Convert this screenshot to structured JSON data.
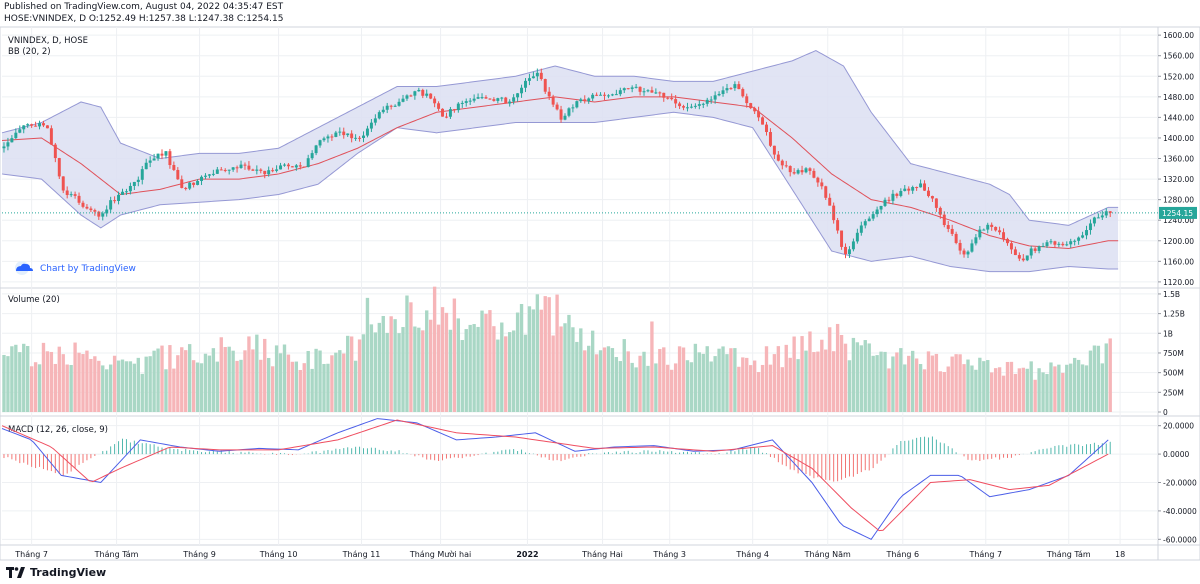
{
  "header": {
    "published_line": "Published on TradingView.com, August 04, 2022 04:35:47 EST",
    "ohlc_line": "HOSE:VNINDEX, D O:1252.49 H:1257.38 L:1247.38 C:1254.15"
  },
  "footer": {
    "brand": "TradingView"
  },
  "chart_data": {
    "type": "candlestick",
    "panes": [
      {
        "id": "price",
        "legend": [
          "VNINDEX, D, HOSE",
          "BB (20, 2)"
        ],
        "watermark": "Chart by TradingView",
        "y_ticks": [
          1600,
          1560,
          1520,
          1480,
          1440,
          1400,
          1360,
          1320,
          1280,
          1240,
          1200,
          1160,
          1120
        ],
        "y_tick_labels": [
          "1600.00",
          "1560.00",
          "1520.00",
          "1480.00",
          "1440.00",
          "1400.00",
          "1360.00",
          "1320.00",
          "1280.00",
          "1240.00",
          "1200.00",
          "1160.00",
          "1120.00"
        ],
        "ylim": [
          1112,
          1610
        ],
        "last_price": 1254.15,
        "last_price_label": "1254.15",
        "close_path": [
          [
            0,
            1380
          ],
          [
            12,
            1430
          ],
          [
            22,
            1420
          ],
          [
            30,
            1300
          ],
          [
            40,
            1270
          ],
          [
            48,
            1250
          ],
          [
            58,
            1290
          ],
          [
            66,
            1310
          ],
          [
            74,
            1360
          ],
          [
            82,
            1370
          ],
          [
            90,
            1300
          ],
          [
            100,
            1320
          ],
          [
            110,
            1340
          ],
          [
            120,
            1345
          ],
          [
            132,
            1330
          ],
          [
            142,
            1350
          ],
          [
            152,
            1345
          ],
          [
            160,
            1400
          ],
          [
            170,
            1410
          ],
          [
            180,
            1400
          ],
          [
            190,
            1450
          ],
          [
            200,
            1470
          ],
          [
            210,
            1490
          ],
          [
            216,
            1480
          ],
          [
            222,
            1440
          ],
          [
            232,
            1470
          ],
          [
            244,
            1480
          ],
          [
            256,
            1470
          ],
          [
            264,
            1510
          ],
          [
            270,
            1525
          ],
          [
            276,
            1480
          ],
          [
            282,
            1440
          ],
          [
            290,
            1470
          ],
          [
            298,
            1480
          ],
          [
            310,
            1490
          ],
          [
            322,
            1495
          ],
          [
            334,
            1480
          ],
          [
            346,
            1460
          ],
          [
            358,
            1475
          ],
          [
            370,
            1500
          ],
          [
            376,
            1470
          ],
          [
            384,
            1430
          ],
          [
            390,
            1370
          ],
          [
            398,
            1330
          ],
          [
            406,
            1340
          ],
          [
            414,
            1310
          ],
          [
            420,
            1240
          ],
          [
            426,
            1170
          ],
          [
            434,
            1230
          ],
          [
            442,
            1260
          ],
          [
            450,
            1290
          ],
          [
            458,
            1300
          ],
          [
            464,
            1310
          ],
          [
            470,
            1280
          ],
          [
            476,
            1230
          ],
          [
            482,
            1200
          ],
          [
            486,
            1170
          ],
          [
            494,
            1220
          ],
          [
            500,
            1230
          ],
          [
            508,
            1200
          ],
          [
            514,
            1160
          ],
          [
            520,
            1180
          ],
          [
            528,
            1195
          ],
          [
            538,
            1190
          ],
          [
            546,
            1210
          ],
          [
            554,
            1250
          ],
          [
            560,
            1254.15
          ]
        ],
        "bb_basis": [
          [
            0,
            1395
          ],
          [
            20,
            1400
          ],
          [
            40,
            1350
          ],
          [
            60,
            1290
          ],
          [
            80,
            1300
          ],
          [
            100,
            1320
          ],
          [
            120,
            1320
          ],
          [
            140,
            1330
          ],
          [
            160,
            1350
          ],
          [
            180,
            1380
          ],
          [
            200,
            1420
          ],
          [
            220,
            1450
          ],
          [
            240,
            1460
          ],
          [
            260,
            1470
          ],
          [
            280,
            1480
          ],
          [
            300,
            1470
          ],
          [
            320,
            1480
          ],
          [
            340,
            1480
          ],
          [
            360,
            1470
          ],
          [
            380,
            1460
          ],
          [
            400,
            1400
          ],
          [
            420,
            1330
          ],
          [
            440,
            1280
          ],
          [
            460,
            1265
          ],
          [
            480,
            1240
          ],
          [
            500,
            1210
          ],
          [
            520,
            1190
          ],
          [
            540,
            1185
          ],
          [
            560,
            1200
          ]
        ],
        "bb_upper": [
          [
            0,
            1410
          ],
          [
            20,
            1430
          ],
          [
            40,
            1470
          ],
          [
            50,
            1460
          ],
          [
            60,
            1390
          ],
          [
            80,
            1360
          ],
          [
            100,
            1370
          ],
          [
            120,
            1370
          ],
          [
            140,
            1380
          ],
          [
            160,
            1420
          ],
          [
            180,
            1460
          ],
          [
            200,
            1500
          ],
          [
            220,
            1500
          ],
          [
            240,
            1510
          ],
          [
            260,
            1520
          ],
          [
            280,
            1540
          ],
          [
            300,
            1520
          ],
          [
            320,
            1520
          ],
          [
            340,
            1510
          ],
          [
            360,
            1510
          ],
          [
            380,
            1530
          ],
          [
            400,
            1550
          ],
          [
            412,
            1570
          ],
          [
            426,
            1540
          ],
          [
            440,
            1450
          ],
          [
            460,
            1350
          ],
          [
            480,
            1330
          ],
          [
            500,
            1310
          ],
          [
            510,
            1290
          ],
          [
            520,
            1240
          ],
          [
            540,
            1230
          ],
          [
            560,
            1265
          ]
        ],
        "bb_lower": [
          [
            0,
            1330
          ],
          [
            20,
            1320
          ],
          [
            40,
            1250
          ],
          [
            50,
            1225
          ],
          [
            60,
            1250
          ],
          [
            80,
            1270
          ],
          [
            100,
            1275
          ],
          [
            120,
            1280
          ],
          [
            140,
            1290
          ],
          [
            160,
            1310
          ],
          [
            180,
            1370
          ],
          [
            200,
            1420
          ],
          [
            220,
            1410
          ],
          [
            240,
            1420
          ],
          [
            260,
            1430
          ],
          [
            280,
            1430
          ],
          [
            300,
            1430
          ],
          [
            320,
            1440
          ],
          [
            340,
            1450
          ],
          [
            360,
            1440
          ],
          [
            380,
            1420
          ],
          [
            400,
            1300
          ],
          [
            420,
            1180
          ],
          [
            440,
            1160
          ],
          [
            460,
            1170
          ],
          [
            480,
            1150
          ],
          [
            500,
            1140
          ],
          [
            520,
            1140
          ],
          [
            540,
            1150
          ],
          [
            560,
            1145
          ]
        ]
      },
      {
        "id": "volume",
        "legend": "Volume (20)",
        "y_ticks": [
          1500000000,
          1250000000,
          1000000000,
          750000000,
          500000000,
          250000000,
          0
        ],
        "y_tick_labels": [
          "1.5B",
          "1.25B",
          "1B",
          "750M",
          "500M",
          "250M",
          "0"
        ],
        "ylim": [
          0,
          1550000000
        ],
        "volume_profile": [
          [
            0,
            650
          ],
          [
            30,
            750
          ],
          [
            60,
            550
          ],
          [
            90,
            700
          ],
          [
            120,
            800
          ],
          [
            150,
            650
          ],
          [
            180,
            800
          ],
          [
            200,
            1100
          ],
          [
            220,
            1300
          ],
          [
            240,
            1000
          ],
          [
            260,
            1200
          ],
          [
            280,
            1150
          ],
          [
            300,
            800
          ],
          [
            320,
            700
          ],
          [
            340,
            650
          ],
          [
            360,
            700
          ],
          [
            380,
            600
          ],
          [
            400,
            750
          ],
          [
            420,
            900
          ],
          [
            440,
            700
          ],
          [
            460,
            650
          ],
          [
            480,
            600
          ],
          [
            500,
            550
          ],
          [
            520,
            500
          ],
          [
            540,
            600
          ],
          [
            560,
            720
          ]
        ],
        "notable_spikes": [
          [
            184,
            1450
          ],
          [
            204,
            1480
          ],
          [
            272,
            1300
          ],
          [
            328,
            1150
          ]
        ]
      },
      {
        "id": "macd",
        "legend": "MACD (12, 26, close, 9)",
        "y_ticks": [
          20,
          0,
          -20,
          -40,
          -60
        ],
        "y_tick_labels": [
          "20.0000",
          "0.0000",
          "-20.0000",
          "-40.0000",
          "-60.0000"
        ],
        "ylim": [
          -64,
          24
        ],
        "macd_line": [
          [
            0,
            18
          ],
          [
            15,
            10
          ],
          [
            30,
            -15
          ],
          [
            50,
            -20
          ],
          [
            70,
            10
          ],
          [
            90,
            5
          ],
          [
            110,
            2
          ],
          [
            130,
            4
          ],
          [
            150,
            3
          ],
          [
            170,
            15
          ],
          [
            190,
            25
          ],
          [
            210,
            22
          ],
          [
            230,
            10
          ],
          [
            250,
            12
          ],
          [
            270,
            15
          ],
          [
            290,
            2
          ],
          [
            310,
            5
          ],
          [
            330,
            6
          ],
          [
            350,
            2
          ],
          [
            370,
            3
          ],
          [
            390,
            10
          ],
          [
            410,
            -20
          ],
          [
            425,
            -50
          ],
          [
            440,
            -60
          ],
          [
            455,
            -30
          ],
          [
            470,
            -15
          ],
          [
            485,
            -15
          ],
          [
            500,
            -30
          ],
          [
            520,
            -25
          ],
          [
            540,
            -15
          ],
          [
            560,
            10
          ]
        ],
        "signal_line": [
          [
            0,
            20
          ],
          [
            25,
            5
          ],
          [
            45,
            -20
          ],
          [
            60,
            -10
          ],
          [
            85,
            5
          ],
          [
            110,
            3
          ],
          [
            140,
            3
          ],
          [
            170,
            10
          ],
          [
            200,
            24
          ],
          [
            230,
            15
          ],
          [
            260,
            12
          ],
          [
            280,
            8
          ],
          [
            300,
            4
          ],
          [
            330,
            5
          ],
          [
            360,
            2
          ],
          [
            390,
            6
          ],
          [
            410,
            -10
          ],
          [
            430,
            -38
          ],
          [
            445,
            -55
          ],
          [
            470,
            -20
          ],
          [
            490,
            -18
          ],
          [
            510,
            -25
          ],
          [
            530,
            -22
          ],
          [
            560,
            0
          ]
        ],
        "histogram": [
          [
            0,
            -2
          ],
          [
            30,
            -15
          ],
          [
            60,
            10
          ],
          [
            90,
            3
          ],
          [
            120,
            1
          ],
          [
            150,
            0
          ],
          [
            180,
            5
          ],
          [
            200,
            2
          ],
          [
            220,
            -5
          ],
          [
            240,
            0
          ],
          [
            260,
            3
          ],
          [
            280,
            -5
          ],
          [
            300,
            1
          ],
          [
            330,
            2
          ],
          [
            360,
            0
          ],
          [
            380,
            5
          ],
          [
            400,
            -12
          ],
          [
            420,
            -20
          ],
          [
            440,
            -10
          ],
          [
            455,
            10
          ],
          [
            470,
            12
          ],
          [
            490,
            -5
          ],
          [
            510,
            -2
          ],
          [
            530,
            5
          ],
          [
            560,
            8
          ]
        ]
      }
    ],
    "x_axis": {
      "labels": [
        "Tháng 7",
        "Tháng Tám",
        "Tháng 9",
        "Tháng 10",
        "Tháng 11",
        "Tháng Mười hai",
        "2022",
        "Tháng Hai",
        "Tháng 3",
        "Tháng 4",
        "Tháng Năm",
        "Tháng 6",
        "Tháng 7",
        "Tháng Tám",
        "18"
      ],
      "bold_label": "2022",
      "label_index": [
        15,
        58,
        100,
        140,
        182,
        222,
        266,
        304,
        338,
        380,
        418,
        456,
        498,
        540,
        566
      ],
      "domain": [
        0,
        570
      ]
    },
    "colors": {
      "up": "#26a69a",
      "down": "#ef5350",
      "bb_band": "#9598d4",
      "bb_fill": "#dcdff2",
      "bb_basis": "#e0515a",
      "macd": "#4b5ee8",
      "signal": "#ef4e60",
      "vol_up": "#a9d7c5",
      "vol_down": "#f6b5b8",
      "last_price_bg": "#26a69a",
      "grid": "#eef0f3"
    }
  }
}
